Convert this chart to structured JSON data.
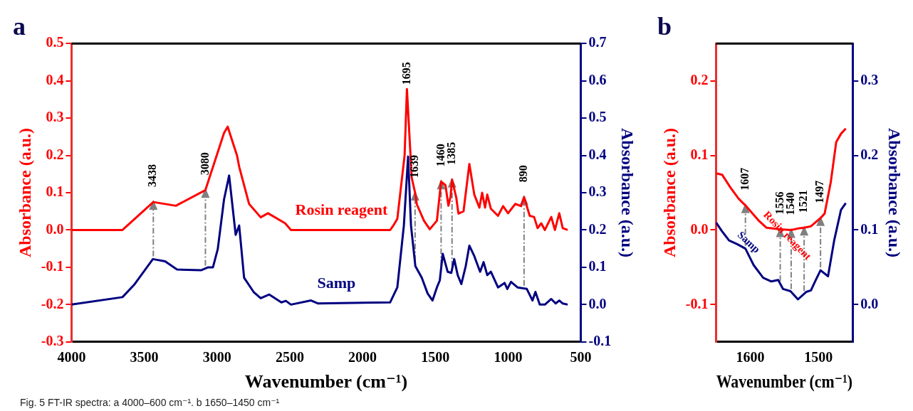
{
  "chart_data": [
    {
      "type": "line",
      "title": "a",
      "xlabel": "Wavenumber (cm⁻¹)",
      "ylabel": "Absorbance (a.u.)",
      "y2label": "Absorbance (a.u.)",
      "xlim": [
        4000,
        500
      ],
      "xticks": [
        4000,
        3500,
        3000,
        2500,
        2000,
        1500,
        1000,
        500
      ],
      "ylim": [
        -0.3,
        0.5
      ],
      "yticks": [
        -0.3,
        -0.2,
        -0.1,
        {
          "value": 0,
          "label": "0.0"
        },
        0.1,
        0.2,
        0.3,
        0.4,
        0.5
      ],
      "y2lim": [
        -0.1,
        0.7
      ],
      "y2ticks": [
        -0.1,
        {
          "value": 0,
          "label": "0.0"
        },
        0.1,
        0.2,
        0.3,
        0.4,
        0.5,
        0.6,
        0.7
      ],
      "grid": false,
      "legend": false,
      "series": [
        {
          "name": "Rosin reagent",
          "color": "#ff0000",
          "x": [
            4000,
            3650,
            3438,
            3283,
            3080,
            2952,
            2927,
            2863,
            2848,
            2780,
            2700,
            2650,
            2532,
            2492,
            1810,
            1790,
            1761,
            1711,
            1695,
            1662,
            1639,
            1627,
            1578,
            1538,
            1489,
            1460,
            1430,
            1410,
            1395,
            1385,
            1356,
            1341,
            1306,
            1266,
            1232,
            1197,
            1178,
            1158,
            1143,
            1118,
            1069,
            1034,
            1000,
            950,
            910,
            890,
            851,
            821,
            797,
            772,
            747,
            703,
            678,
            648,
            624,
            590
          ],
          "values": [
            0,
            0,
            0.075,
            0.065,
            0.107,
            0.26,
            0.277,
            0.2,
            0.17,
            0.07,
            0.034,
            0.045,
            0.018,
            0,
            0,
            0.011,
            0.03,
            0.2,
            0.378,
            0.14,
            0.1,
            0.069,
            0.025,
            0.002,
            0.025,
            0.13,
            0.12,
            0.065,
            0.09,
            0.135,
            0.087,
            0.044,
            0.05,
            0.177,
            0.095,
            0.06,
            0.1,
            0.06,
            0.095,
            0.057,
            0.038,
            0.064,
            0.045,
            0.07,
            0.064,
            0.088,
            0.038,
            0.035,
            0.005,
            0.018,
            0,
            0.035,
            0,
            0.045,
            0.005,
            0
          ]
        },
        {
          "name": "Samp",
          "color": "#000080",
          "axis": "y2",
          "x": [
            4000,
            3650,
            3570,
            3441,
            3357,
            3275,
            3110,
            3061,
            3028,
            2995,
            2952,
            2917,
            2872,
            2848,
            2814,
            2749,
            2700,
            2641,
            2558,
            2527,
            2492,
            2354,
            2305,
            1810,
            1761,
            1716,
            1687,
            1667,
            1637,
            1593,
            1553,
            1519,
            1489,
            1469,
            1449,
            1415,
            1390,
            1370,
            1346,
            1321,
            1291,
            1266,
            1232,
            1192,
            1168,
            1143,
            1118,
            1069,
            1024,
            1005,
            980,
            935,
            871,
            832,
            812,
            782,
            747,
            703,
            673,
            648,
            624,
            590
          ],
          "values": [
            0,
            0.02,
            0.053,
            0.122,
            0.116,
            0.094,
            0.092,
            0.1,
            0.1,
            0.149,
            0.282,
            0.346,
            0.187,
            0.212,
            0.072,
            0.034,
            0.017,
            0.027,
            0.006,
            0.01,
            0,
            0.011,
            0.003,
            0.006,
            0.046,
            0.212,
            0.397,
            0.212,
            0.103,
            0.072,
            0.03,
            0.011,
            0.046,
            0.065,
            0.136,
            0.088,
            0.085,
            0.122,
            0.079,
            0.055,
            0.103,
            0.158,
            0.13,
            0.088,
            0.114,
            0.079,
            0.088,
            0.046,
            0.058,
            0.042,
            0.061,
            0.046,
            0.042,
            0.011,
            0.034,
            0,
            0,
            0.015,
            0.003,
            0.011,
            0.003,
            0
          ]
        }
      ],
      "annotations": [
        {
          "text": "3438",
          "x": 3438,
          "y": 0.075
        },
        {
          "text": "3080",
          "x": 3080,
          "y": 0.107
        },
        {
          "text": "1695",
          "x": 1695,
          "y": 0.378
        },
        {
          "text": "1639",
          "x": 1639,
          "y": 0.1
        },
        {
          "text": "1460",
          "x": 1460,
          "y": 0.13
        },
        {
          "text": "1385",
          "x": 1385,
          "y": 0.135
        },
        {
          "text": "890",
          "x": 890,
          "y": 0.088
        },
        "Fig. 5 FT-IR spectra: a 4000–600 cm⁻¹. b 1650–1450 cm⁻¹"
      ]
    },
    {
      "type": "line",
      "title": "b",
      "xlabel": "Wavenumber (cm⁻¹)",
      "ylabel": "Absorbance (a.u.)",
      "y2label": "Absorbance (a.u.)",
      "xlim": [
        1650,
        1450
      ],
      "xticks": [
        1600,
        1500
      ],
      "ylim": [
        -0.15,
        0.25
      ],
      "yticks": [
        -0.1,
        {
          "value": 0,
          "label": "0.0"
        },
        0.1,
        0.2
      ],
      "y2lim": [
        -0.05,
        0.35
      ],
      "y2ticks": [
        {
          "value": 0,
          "label": "0.0"
        },
        0.1,
        0.2,
        0.3
      ],
      "grid": false,
      "legend": false,
      "series": [
        {
          "name": "Rosin reagent",
          "color": "#ff0000",
          "x": [
            1650,
            1641,
            1629,
            1617,
            1607,
            1588,
            1576,
            1556,
            1540,
            1530,
            1521,
            1511,
            1497,
            1491,
            1482,
            1474,
            1467,
            1460
          ],
          "values": [
            0.076,
            0.074,
            0.057,
            0.042,
            0.033,
            0.013,
            0.003,
            0.001,
            0,
            0.002,
            0.003,
            0.005,
            0.016,
            0.022,
            0.064,
            0.118,
            0.129,
            0.136
          ]
        },
        {
          "name": "Samp",
          "color": "#000080",
          "axis": "y2",
          "x": [
            1650,
            1641,
            1631,
            1619,
            1607,
            1595,
            1581,
            1569,
            1559,
            1552,
            1541,
            1530,
            1518,
            1511,
            1505,
            1497,
            1486,
            1477,
            1467,
            1460
          ],
          "values": [
            0.11,
            0.098,
            0.086,
            0.081,
            0.075,
            0.053,
            0.036,
            0.031,
            0.033,
            0.021,
            0.018,
            0.007,
            0.017,
            0.019,
            0.031,
            0.046,
            0.038,
            0.086,
            0.127,
            0.136
          ]
        }
      ],
      "annotations": [
        {
          "text": "1607",
          "x": 1607,
          "y": 0.033
        },
        {
          "text": "1556",
          "x": 1556,
          "y": 0.001
        },
        {
          "text": "1540",
          "x": 1540,
          "y": 0
        },
        {
          "text": "1521",
          "x": 1521,
          "y": 0.003
        },
        {
          "text": "1497",
          "x": 1497,
          "y": 0.016
        }
      ]
    }
  ]
}
